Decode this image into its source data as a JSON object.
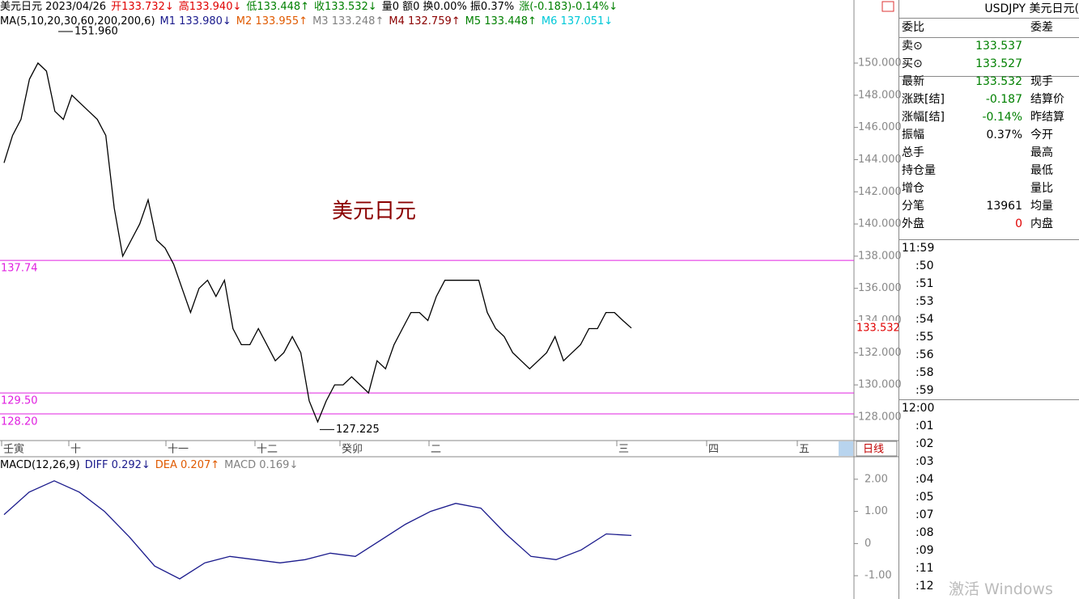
{
  "header": {
    "segments": [
      {
        "text": "美元日元 2023/04/26",
        "color": "#000000"
      },
      {
        "text": "开133.732↓",
        "color": "#e00000"
      },
      {
        "text": "高133.940↓",
        "color": "#e00000"
      },
      {
        "text": "低133.448↑",
        "color": "#008000"
      },
      {
        "text": "收133.532↓",
        "color": "#008000"
      },
      {
        "text": "量0 额0 换0.00% 振0.37%",
        "color": "#000000"
      },
      {
        "text": "涨(-0.183)-0.14%↓",
        "color": "#008000"
      }
    ]
  },
  "ma_header": {
    "segments": [
      {
        "text": "MA(5,10,20,30,60,200,200,6)",
        "color": "#000000"
      },
      {
        "text": "M1 133.980↓",
        "color": "#1a1a8c"
      },
      {
        "text": "M2 133.955↑",
        "color": "#e05a00"
      },
      {
        "text": "M3 133.248↑",
        "color": "#808080"
      },
      {
        "text": "M4 132.759↑",
        "color": "#8b0000"
      },
      {
        "text": "M5 133.448↑",
        "color": "#008000"
      },
      {
        "text": "M6 137.051↓",
        "color": "#00c8d8"
      }
    ]
  },
  "price_chart": {
    "type": "line",
    "title": "美元日元",
    "color": "#000000",
    "ylim": [
      126.54,
      153.92
    ],
    "yticks": [
      {
        "value": 150,
        "label": "150.000"
      },
      {
        "value": 148,
        "label": "148.000"
      },
      {
        "value": 146,
        "label": "146.000"
      },
      {
        "value": 144,
        "label": "144.000"
      },
      {
        "value": 142,
        "label": "142.000"
      },
      {
        "value": 140,
        "label": "140.000"
      },
      {
        "value": 138,
        "label": "138.000"
      },
      {
        "value": 136,
        "label": "136.000"
      },
      {
        "value": 134,
        "label": "134.000"
      },
      {
        "value": 132,
        "label": "132.000"
      },
      {
        "value": 130,
        "label": "130.000"
      },
      {
        "value": 128,
        "label": "128.000"
      }
    ],
    "values": [
      143.8,
      145.5,
      146.5,
      149,
      150,
      149.5,
      147,
      146.5,
      148,
      147.5,
      147,
      146.5,
      145.5,
      141,
      138,
      139,
      140,
      141.5,
      139,
      138.5,
      137.5,
      136,
      134.5,
      136,
      136.5,
      135.5,
      136.5,
      133.5,
      132.5,
      132.5,
      133.5,
      132.5,
      131.5,
      132,
      133,
      132,
      129,
      127.7,
      129,
      130,
      130,
      130.5,
      130,
      129.5,
      131.5,
      131,
      132.5,
      133.5,
      134.5,
      134.5,
      134,
      135.5,
      136.5,
      136.5,
      136.5,
      136.5,
      136.5,
      134.5,
      133.5,
      133,
      132,
      131.5,
      131,
      131.5,
      132,
      133,
      131.5,
      132,
      132.5,
      133.5,
      133.5,
      134.5,
      134.5,
      134,
      133.532
    ],
    "levels": [
      137.74,
      {
        "value": 129.5,
        "label": "129.50"
      },
      {
        "value": 128.2,
        "label": "128.20"
      }
    ],
    "high": {
      "value": 151.96,
      "label": "151.960"
    },
    "low": {
      "value": 127.225,
      "label": "127.225"
    },
    "last": 133.532,
    "date_labels": [
      "壬寅",
      "十",
      "十一",
      "十二",
      "癸卯",
      "二",
      "三",
      "四",
      "五"
    ],
    "period": "日线"
  },
  "macd": {
    "type": "line",
    "segments": [
      {
        "text": "MACD(12,26,9)",
        "color": "#000000"
      },
      {
        "text": "DIFF 0.292↓",
        "color": "#1a1a8c"
      },
      {
        "text": "DEA 0.207↑",
        "color": "#e05a00"
      },
      {
        "text": "MACD 0.169↓",
        "color": "#808080"
      }
    ],
    "color": "#1a1a8c",
    "ylim": [
      -1.725,
      2.7
    ],
    "yticks": [
      {
        "value": 2,
        "label": "2.00"
      },
      {
        "value": 1,
        "label": "1.00"
      },
      0,
      {
        "value": -1,
        "label": "-1.00"
      }
    ],
    "values": [
      0.9,
      1.6,
      1.95,
      1.6,
      1.0,
      0.2,
      -0.7,
      -1.1,
      -0.6,
      -0.4,
      -0.5,
      -0.6,
      -0.5,
      -0.3,
      -0.4,
      0.1,
      0.6,
      1.0,
      1.25,
      1.1,
      0.3,
      -0.4,
      -0.5,
      -0.2,
      0.3,
      0.25
    ]
  },
  "quote_panel": {
    "title": "USDJPY 美元日元(",
    "rows": [
      [
        "委比",
        "",
        "委差"
      ],
      [
        "卖⊙",
        "133.537",
        ""
      ],
      [
        "买⊙",
        "133.527",
        ""
      ],
      [
        "最新",
        "133.532",
        "现手"
      ],
      [
        "涨跌[结]",
        "-0.187",
        "结算价"
      ],
      [
        "涨幅[结]",
        "-0.14%",
        "昨结算"
      ],
      [
        "振幅",
        "0.37%",
        "今开"
      ],
      [
        "总手",
        "",
        "最高"
      ],
      [
        "持仓量",
        "",
        "最低"
      ],
      [
        "增仓",
        "",
        "量比"
      ],
      [
        "分笔",
        "13961",
        "均量"
      ],
      [
        "外盘",
        "0",
        "内盘"
      ]
    ],
    "times": [
      "11:59",
      ":50",
      ":51",
      ":53",
      ":54",
      ":55",
      ":56",
      ":58",
      ":59",
      "12:00",
      ":01",
      ":02",
      ":03",
      ":04",
      ":05",
      ":07",
      ":08",
      ":09",
      ":11",
      ":12"
    ]
  },
  "watermark": "激活 Windows"
}
